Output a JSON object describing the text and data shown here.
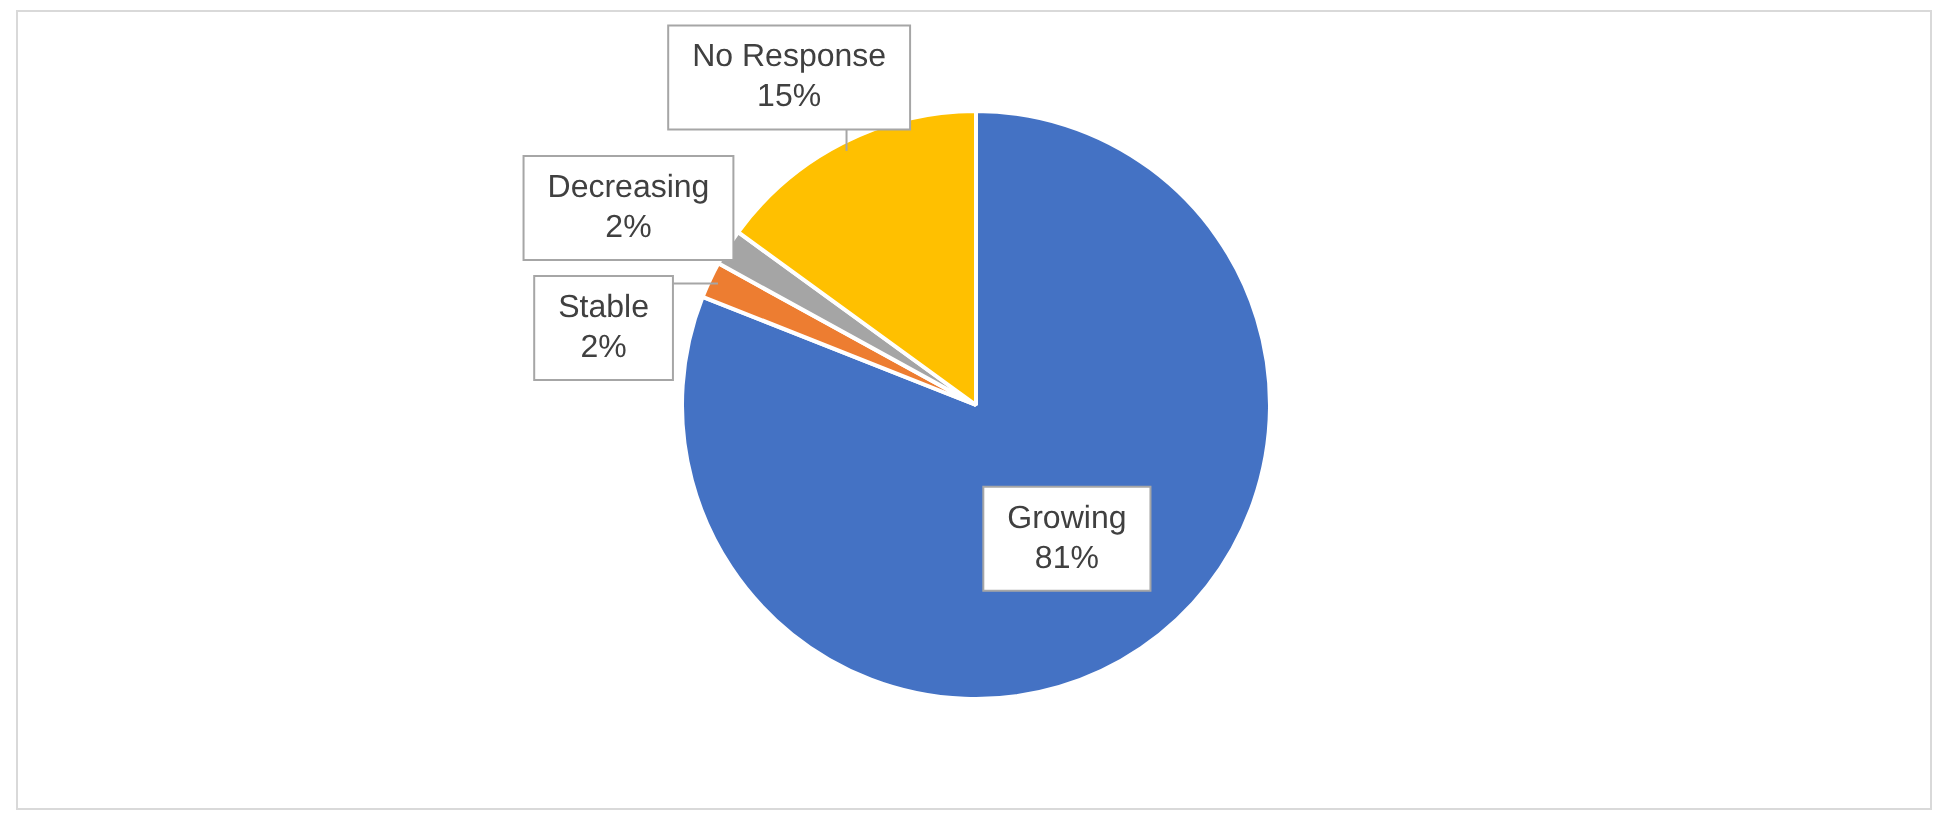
{
  "chart_data": {
    "type": "pie",
    "categories": [
      "Growing",
      "Stable",
      "Decreasing",
      "No Response"
    ],
    "values": [
      81,
      2,
      2,
      15
    ],
    "colors": [
      "#4472c4",
      "#ed7d31",
      "#a5a5a5",
      "#ffc000"
    ],
    "value_labels": [
      "81%",
      "2%",
      "2%",
      "15%"
    ],
    "legend": false
  }
}
